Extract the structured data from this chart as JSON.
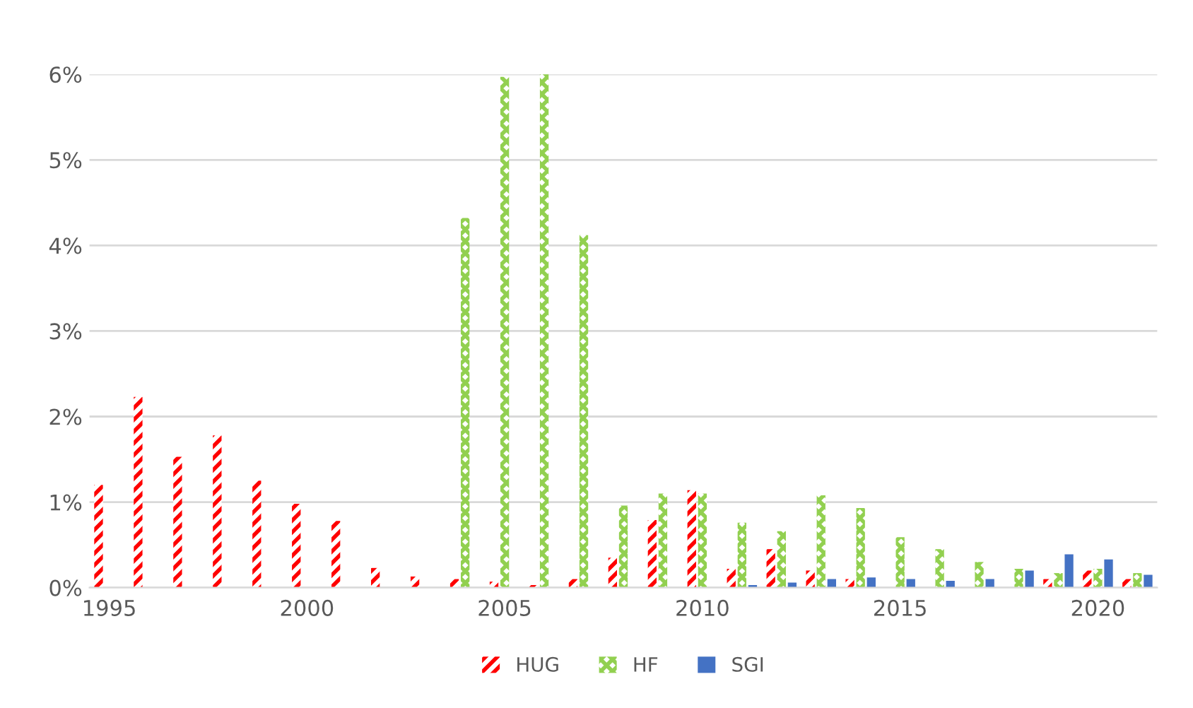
{
  "chart_data": {
    "type": "bar",
    "x": [
      1995,
      1996,
      1997,
      1998,
      1999,
      2000,
      2001,
      2002,
      2003,
      2004,
      2005,
      2006,
      2007,
      2008,
      2009,
      2010,
      2011,
      2012,
      2013,
      2014,
      2015,
      2016,
      2017,
      2018,
      2019,
      2020,
      2021
    ],
    "series": [
      {
        "name": "HUG",
        "color": "#ff0000",
        "values": [
          1.2,
          2.23,
          1.53,
          1.78,
          1.25,
          0.98,
          0.78,
          0.23,
          0.13,
          0.1,
          0.07,
          0.03,
          0.1,
          0.35,
          0.79,
          1.14,
          0.22,
          0.45,
          0.2,
          0.1,
          null,
          null,
          null,
          null,
          0.1,
          0.2,
          0.1
        ]
      },
      {
        "name": "HF",
        "color": "#92d050",
        "values": [
          null,
          null,
          null,
          null,
          null,
          null,
          null,
          null,
          null,
          4.32,
          5.97,
          6.0,
          4.12,
          0.96,
          1.1,
          1.1,
          0.76,
          0.66,
          1.08,
          0.93,
          0.59,
          0.45,
          0.3,
          0.22,
          0.17,
          0.22,
          0.17
        ]
      },
      {
        "name": "SGI",
        "color": "#4472c4",
        "values": [
          null,
          null,
          null,
          null,
          null,
          null,
          null,
          null,
          null,
          null,
          null,
          null,
          null,
          null,
          null,
          null,
          0.03,
          0.06,
          0.1,
          0.12,
          0.1,
          0.08,
          0.1,
          0.2,
          0.39,
          0.33,
          0.15
        ]
      }
    ],
    "xlim": [
      1994.5,
      2021.5
    ],
    "xticks": [
      1995,
      2000,
      2005,
      2010,
      2015,
      2020
    ],
    "ylim": [
      0,
      6
    ],
    "yticks": [
      {
        "value": 0,
        "label": "0%"
      },
      {
        "value": 1,
        "label": "1%"
      },
      {
        "value": 2,
        "label": "2%"
      },
      {
        "value": 3,
        "label": "3%"
      },
      {
        "value": 4,
        "label": "4%"
      },
      {
        "value": 5,
        "label": "5%"
      },
      {
        "value": 6,
        "label": "6%"
      }
    ],
    "grid": "y",
    "legend": "bottom"
  }
}
